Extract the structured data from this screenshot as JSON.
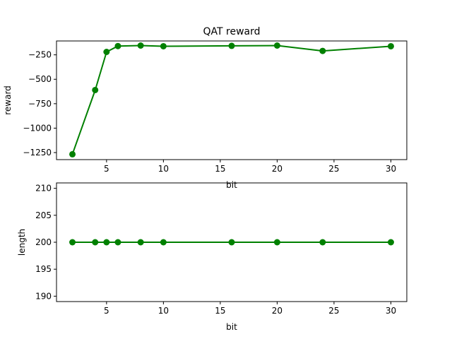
{
  "chart_data": [
    {
      "type": "line",
      "title": "QAT reward",
      "xlabel": "bit",
      "ylabel": "reward",
      "x": [
        2,
        4,
        5,
        6,
        8,
        10,
        16,
        20,
        24,
        30
      ],
      "series": [
        {
          "values": [
            -1267,
            -610,
            -220,
            -160,
            -155,
            -162,
            -158,
            -155,
            -210,
            -162
          ],
          "color": "#008000",
          "marker": "circle"
        }
      ],
      "xlim": [
        0.6,
        31.4
      ],
      "ylim": [
        -1322,
        -108
      ],
      "xticks": [
        5,
        10,
        15,
        20,
        25,
        30
      ],
      "yticks": [
        -1250,
        -1000,
        -750,
        -500,
        -250
      ],
      "grid": false
    },
    {
      "type": "line",
      "title": "",
      "xlabel": "bit",
      "ylabel": "length",
      "x": [
        2,
        4,
        5,
        6,
        8,
        10,
        16,
        20,
        24,
        30
      ],
      "series": [
        {
          "values": [
            200,
            200,
            200,
            200,
            200,
            200,
            200,
            200,
            200,
            200
          ],
          "color": "#008000",
          "marker": "circle"
        }
      ],
      "xlim": [
        0.6,
        31.4
      ],
      "ylim": [
        189,
        211
      ],
      "xticks": [
        5,
        10,
        15,
        20,
        25,
        30
      ],
      "yticks": [
        190,
        195,
        200,
        205,
        210
      ],
      "grid": false
    }
  ]
}
